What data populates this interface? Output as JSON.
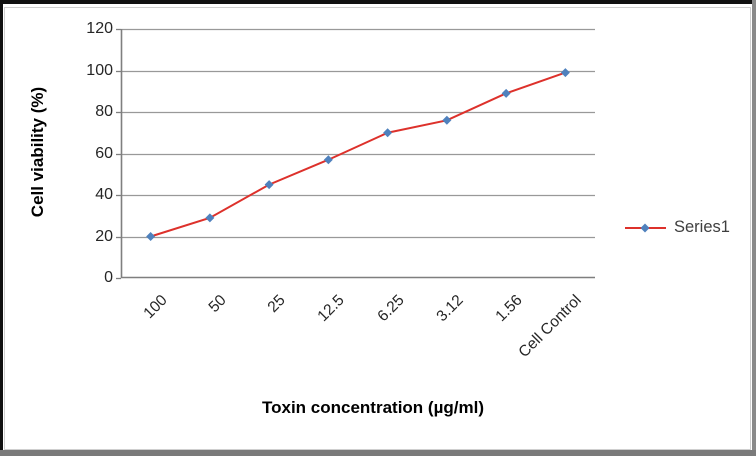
{
  "chart_data": {
    "type": "line",
    "title": "",
    "categories": [
      "100",
      "50",
      "25",
      "12.5",
      "6.25",
      "3.12",
      "1.56",
      "Cell Control"
    ],
    "series": [
      {
        "name": "Series1",
        "values": [
          20,
          29,
          45,
          57,
          70,
          76,
          89,
          99
        ],
        "marker": "diamond"
      }
    ],
    "xlabel": "Toxin concentration (µg/ml)",
    "ylabel": "Cell viability (%)",
    "ylim": [
      0,
      120
    ],
    "yticks": [
      0,
      20,
      40,
      60,
      80,
      100,
      120
    ],
    "grid": true,
    "legend": {
      "label": "Series1",
      "position": "right"
    },
    "colors": {
      "line": "#dd312b",
      "marker": "#4f81bd",
      "gridline": "#999999",
      "axis": "#7f7f7f",
      "tick_text": "#262626",
      "title_text": "#000000",
      "legend_text": "#3f3f3f"
    }
  }
}
